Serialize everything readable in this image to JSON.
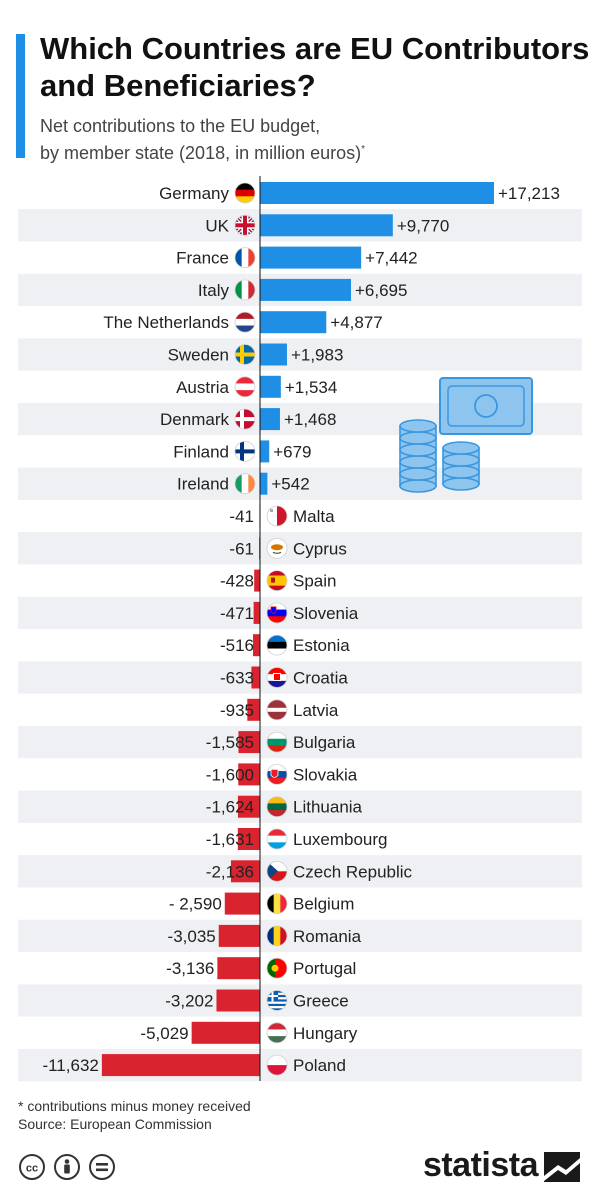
{
  "header": {
    "title": "Which Countries are EU Contributors and Beneficiaries?",
    "subtitle_line1": "Net contributions to the EU budget,",
    "subtitle_line2": "by member state (2018, in million euros)",
    "subtitle_mark": "*"
  },
  "chart_data": {
    "type": "bar",
    "orientation": "horizontal",
    "title": "Which Countries are EU Contributors and Beneficiaries?",
    "subtitle": "Net contributions to the EU budget, by member state (2018, in million euros)*",
    "categories": [
      "Germany",
      "UK",
      "France",
      "Italy",
      "The Netherlands",
      "Sweden",
      "Austria",
      "Denmark",
      "Finland",
      "Ireland",
      "Malta",
      "Cyprus",
      "Spain",
      "Slovenia",
      "Estonia",
      "Croatia",
      "Latvia",
      "Bulgaria",
      "Slovakia",
      "Lithuania",
      "Luxembourg",
      "Czech Republic",
      "Belgium",
      "Romania",
      "Portugal",
      "Greece",
      "Hungary",
      "Poland"
    ],
    "values": [
      17213,
      9770,
      7442,
      6695,
      4877,
      1983,
      1534,
      1468,
      679,
      542,
      -41,
      -61,
      -428,
      -471,
      -516,
      -633,
      -935,
      -1585,
      -1600,
      -1624,
      -1631,
      -2136,
      -2590,
      -3035,
      -3136,
      -3202,
      -5029,
      -11632
    ],
    "labels": [
      "+17,213",
      "+9,770",
      "+7,442",
      "+6,695",
      "+4,877",
      "+1,983",
      "+1,534",
      "+1,468",
      "+679",
      "+542",
      "-41",
      "-61",
      "-428",
      "-471",
      "-516",
      "-633",
      "-935",
      "-1,585",
      "-1,600",
      "-1,624",
      "-1,631",
      "-2,136",
      "- 2,590",
      "-3,035",
      "-3,136",
      "-3,202",
      "-5,029",
      "-11,632"
    ],
    "flags": [
      "de",
      "uk",
      "fr",
      "it",
      "nl",
      "se",
      "at",
      "dk",
      "fi",
      "ie",
      "mt",
      "cy",
      "es",
      "si",
      "ee",
      "hr",
      "lv",
      "bg",
      "sk",
      "lt",
      "lu",
      "cz",
      "be",
      "ro",
      "pt",
      "gr",
      "hu",
      "pl"
    ],
    "colors": {
      "positive": "#1f8fe5",
      "negative": "#d9232e",
      "stripe": "#eef0f3"
    },
    "grid": false,
    "legend": "none"
  },
  "illustration": {
    "name": "money-illustration",
    "color": "#8ec5ef",
    "stroke": "#3a97df"
  },
  "footer": {
    "note": "* contributions minus money received",
    "source": "Source: European Commission",
    "brand": "statista",
    "icons": [
      "cc-icon",
      "by-icon",
      "nd-icon"
    ]
  }
}
